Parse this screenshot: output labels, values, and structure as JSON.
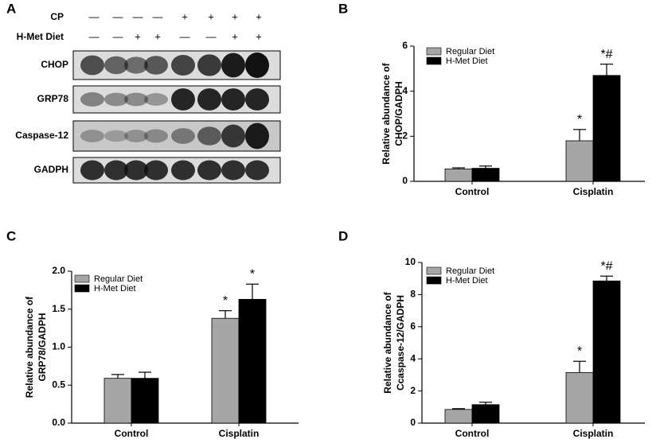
{
  "blot": {
    "panel_label": "A",
    "conditions": [
      {
        "name": "CP",
        "signs": [
          "—",
          "—",
          "—",
          "—",
          "+",
          "+",
          "+",
          "+"
        ]
      },
      {
        "name": "H-Met Diet",
        "signs": [
          "—",
          "—",
          "+",
          "+",
          "—",
          "—",
          "+",
          "+"
        ]
      }
    ],
    "proteins": [
      "CHOP",
      "GRP78",
      "Caspase-12",
      "GADPH"
    ]
  },
  "chart_data": [
    {
      "type": "bar",
      "panel_label": "B",
      "ylabel": [
        "Relative abundance of",
        "CHOP/GADPH"
      ],
      "categories": [
        "Control",
        "Cisplatin"
      ],
      "series": [
        {
          "name": "Regular Diet",
          "color": "#a6a6a6",
          "values": [
            0.55,
            1.8
          ],
          "errors": [
            0.05,
            0.5
          ],
          "annotations": [
            null,
            "*"
          ]
        },
        {
          "name": "H-Met Diet",
          "color": "#000000",
          "values": [
            0.58,
            4.7
          ],
          "errors": [
            0.1,
            0.5
          ],
          "annotations": [
            null,
            "*#"
          ]
        }
      ],
      "ylim": [
        0,
        6
      ],
      "yticks": [
        0,
        2,
        4,
        6
      ],
      "legend": "upper left"
    },
    {
      "type": "bar",
      "panel_label": "C",
      "ylabel": [
        "Relative abundance of",
        "GRP78/GADPH"
      ],
      "categories": [
        "Control",
        "Cisplatin"
      ],
      "series": [
        {
          "name": "Regular Diet",
          "color": "#a6a6a6",
          "values": [
            0.59,
            1.38
          ],
          "errors": [
            0.05,
            0.1
          ],
          "annotations": [
            null,
            "*"
          ]
        },
        {
          "name": "H-Met Diet",
          "color": "#000000",
          "values": [
            0.59,
            1.63
          ],
          "errors": [
            0.08,
            0.2
          ],
          "annotations": [
            null,
            "*"
          ]
        }
      ],
      "ylim": [
        0,
        2
      ],
      "yticks": [
        {
          "value": 0,
          "label": "0.0"
        },
        0.5,
        {
          "value": 1,
          "label": "1.0"
        },
        1.5,
        {
          "value": 2,
          "label": "2.0"
        }
      ],
      "legend": "upper left"
    },
    {
      "type": "bar",
      "panel_label": "D",
      "ylabel": [
        "Relative abundance of",
        "Ccaspase-12/GADPH"
      ],
      "categories": [
        "Control",
        "Cisplatin"
      ],
      "series": [
        {
          "name": "Regular Diet",
          "color": "#a6a6a6",
          "values": [
            0.85,
            3.15
          ],
          "errors": [
            0.05,
            0.7
          ],
          "annotations": [
            null,
            "*"
          ]
        },
        {
          "name": "H-Met Diet",
          "color": "#000000",
          "values": [
            1.15,
            8.85
          ],
          "errors": [
            0.15,
            0.3
          ],
          "annotations": [
            null,
            "*#"
          ]
        }
      ],
      "ylim": [
        0,
        10
      ],
      "yticks": [
        0,
        2,
        4,
        6,
        8,
        10
      ],
      "legend": "upper left"
    }
  ]
}
